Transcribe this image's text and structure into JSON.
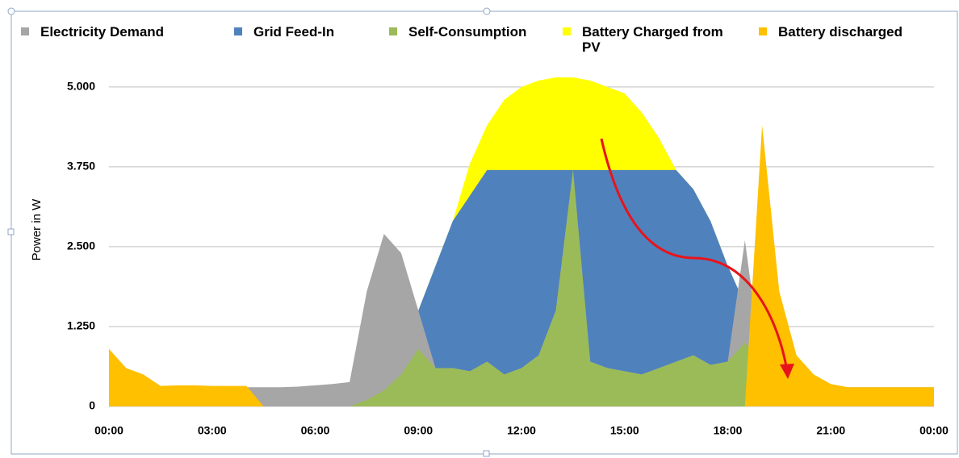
{
  "chart_data": {
    "type": "area",
    "y_label": "Power in W",
    "x": [
      0,
      0.5,
      1,
      1.5,
      2,
      2.5,
      3,
      3.5,
      4,
      4.5,
      5,
      5.5,
      6,
      6.5,
      7,
      7.5,
      8,
      8.5,
      9,
      9.5,
      10,
      10.5,
      11,
      11.5,
      12,
      12.5,
      13,
      13.5,
      14,
      14.5,
      15,
      15.5,
      16,
      16.5,
      17,
      17.5,
      18,
      18.5,
      19,
      19.5,
      20,
      20.5,
      21,
      21.5,
      22,
      22.5,
      23,
      23.5,
      24
    ],
    "xlim": [
      0,
      24
    ],
    "xticks": [
      {
        "value": 0,
        "label": "00:00"
      },
      {
        "value": 3,
        "label": "03:00"
      },
      {
        "value": 6,
        "label": "06:00"
      },
      {
        "value": 9,
        "label": "09:00"
      },
      {
        "value": 12,
        "label": "12:00"
      },
      {
        "value": 15,
        "label": "15:00"
      },
      {
        "value": 18,
        "label": "18:00"
      },
      {
        "value": 21,
        "label": "21:00"
      },
      {
        "value": 24,
        "label": "00:00"
      }
    ],
    "ylim": [
      0,
      5200
    ],
    "yticks": [
      0,
      {
        "value": 1250,
        "label": "1.250"
      },
      {
        "value": 2500,
        "label": "2.500"
      },
      {
        "value": 3750,
        "label": "3.750"
      },
      {
        "value": 5000,
        "label": "5.000"
      }
    ],
    "grid": true,
    "legend": "top",
    "series": [
      {
        "name": "Electricity Demand",
        "color": "#a6a6a6",
        "values": [
          300,
          300,
          300,
          300,
          300,
          300,
          300,
          300,
          300,
          300,
          300,
          310,
          330,
          350,
          380,
          1800,
          2700,
          2400,
          1500,
          600,
          600,
          550,
          700,
          500,
          600,
          800,
          1500,
          3700,
          700,
          600,
          550,
          500,
          600,
          700,
          800,
          650,
          700,
          2600,
          600,
          400,
          300,
          300,
          300,
          300,
          300,
          300,
          300,
          300,
          300
        ]
      },
      {
        "name": "Grid Feed-In",
        "color": "#4f81bd",
        "values": [
          0,
          0,
          0,
          0,
          0,
          0,
          0,
          0,
          0,
          0,
          0,
          0,
          0,
          0,
          0,
          0,
          0,
          200,
          1500,
          2200,
          2900,
          3300,
          3700,
          3700,
          3700,
          3700,
          3700,
          3700,
          3700,
          3700,
          3700,
          3700,
          3700,
          3700,
          3400,
          2900,
          2200,
          1600,
          800,
          400,
          100,
          0,
          0,
          0,
          0,
          0,
          0,
          0,
          0
        ]
      },
      {
        "name": "Self-Consumption",
        "color": "#9bbb59",
        "values": [
          0,
          0,
          0,
          0,
          0,
          0,
          0,
          0,
          0,
          0,
          0,
          0,
          0,
          0,
          0,
          100,
          250,
          500,
          900,
          600,
          600,
          550,
          700,
          500,
          600,
          800,
          1500,
          3700,
          700,
          600,
          550,
          500,
          600,
          700,
          800,
          650,
          700,
          1000,
          600,
          300,
          100,
          0,
          0,
          0,
          0,
          0,
          0,
          0,
          0
        ]
      },
      {
        "name": "Battery Charged from PV",
        "color": "#ffff00",
        "values": [
          0,
          0,
          0,
          0,
          0,
          0,
          0,
          0,
          0,
          0,
          0,
          0,
          0,
          0,
          0,
          0,
          0,
          200,
          1500,
          2200,
          2900,
          3800,
          4400,
          4800,
          5000,
          5100,
          5150,
          5150,
          5100,
          5000,
          4900,
          4600,
          4200,
          3700,
          3400,
          2900,
          2200,
          1600,
          800,
          400,
          100,
          0,
          0,
          0,
          0,
          0,
          0,
          0,
          0
        ]
      },
      {
        "name": "Battery discharged",
        "color": "#ffc000",
        "values": [
          900,
          600,
          500,
          320,
          330,
          330,
          320,
          320,
          320,
          0,
          0,
          0,
          0,
          0,
          0,
          0,
          0,
          0,
          0,
          0,
          0,
          0,
          0,
          0,
          0,
          0,
          0,
          0,
          0,
          0,
          0,
          0,
          0,
          0,
          0,
          0,
          0,
          0,
          4400,
          1800,
          800,
          500,
          350,
          300,
          300,
          300,
          300,
          300,
          300
        ]
      }
    ]
  }
}
